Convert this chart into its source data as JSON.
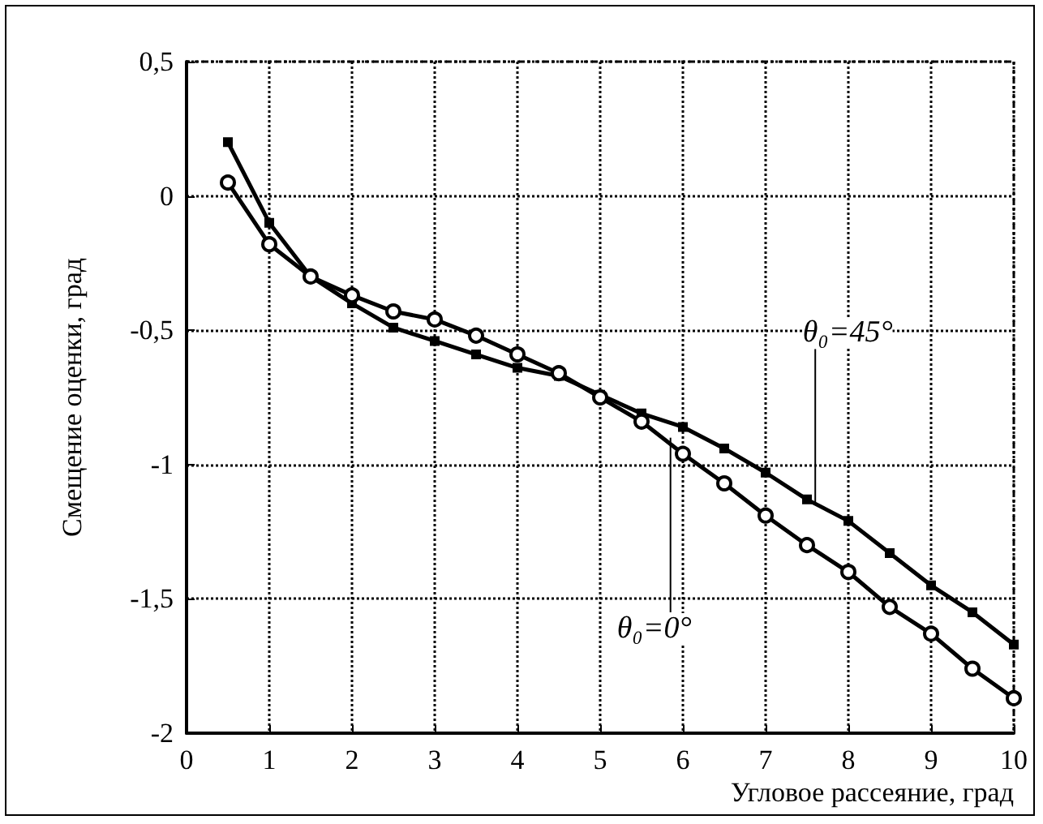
{
  "chart_data": {
    "type": "line",
    "xlabel": "Угловое рассеяние, град",
    "ylabel": "Смещение оценки, град",
    "series": [
      {
        "color": "#000000",
        "marker": "square",
        "x": [
          0.5,
          1,
          1.5,
          2,
          2.5,
          3,
          3.5,
          4,
          4.5,
          5,
          5.5,
          6,
          6.5,
          7,
          7.5,
          8,
          8.5,
          9,
          9.5,
          10
        ],
        "values": [
          0.2,
          -0.1,
          -0.3,
          -0.4,
          -0.49,
          -0.54,
          -0.59,
          -0.64,
          -0.67,
          -0.74,
          -0.81,
          -0.86,
          -0.94,
          -1.03,
          -1.13,
          -1.21,
          -1.33,
          -1.45,
          -1.55,
          -1.67
        ]
      },
      {
        "color": "#000000",
        "marker": "circle",
        "x": [
          0.5,
          1,
          1.5,
          2,
          2.5,
          3,
          3.5,
          4,
          4.5,
          5,
          5.5,
          6,
          6.5,
          7,
          7.5,
          8,
          8.5,
          9,
          9.5,
          10
        ],
        "values": [
          0.05,
          -0.18,
          -0.3,
          -0.37,
          -0.43,
          -0.46,
          -0.52,
          -0.59,
          -0.66,
          -0.75,
          -0.84,
          -0.96,
          -1.07,
          -1.19,
          -1.3,
          -1.4,
          -1.53,
          -1.63,
          -1.76,
          -1.87
        ]
      }
    ],
    "annotations": [
      {
        "text": "θ₀=45°",
        "x": 7.6,
        "y": -1.15
      },
      {
        "text": "θ₀=0°",
        "x": 5.85,
        "y": -0.9
      }
    ],
    "xlim": [
      0,
      10
    ],
    "xticks": [
      0,
      1,
      2,
      3,
      4,
      5,
      6,
      7,
      8,
      9,
      10
    ],
    "ylim": [
      -2,
      0.5
    ],
    "yticks": [
      {
        "value": -2,
        "label": "-2"
      },
      {
        "value": -1.5,
        "label": "-1,5"
      },
      {
        "value": -1,
        "label": "-1"
      },
      {
        "value": -0.5,
        "label": "-0,5"
      },
      {
        "value": 0,
        "label": "0"
      },
      {
        "value": 0.5,
        "label": "0,5"
      }
    ],
    "grid": true,
    "line_style": "solid"
  }
}
